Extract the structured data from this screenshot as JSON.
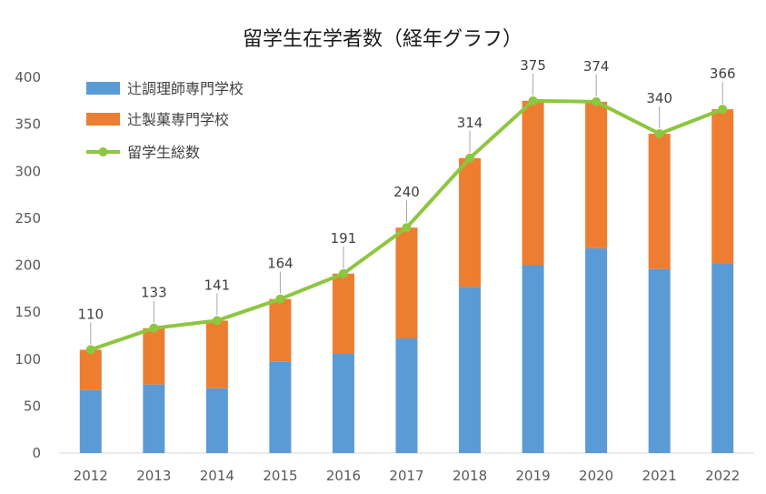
{
  "chart_data": {
    "type": "bar",
    "title": "留学生在学者数（経年グラフ）",
    "xlabel": "",
    "ylabel": "",
    "ylim": [
      0,
      400
    ],
    "yticks": [
      0,
      50,
      100,
      150,
      200,
      250,
      300,
      350,
      400
    ],
    "categories": [
      "2012",
      "2013",
      "2014",
      "2015",
      "2016",
      "2017",
      "2018",
      "2019",
      "2020",
      "2021",
      "2022"
    ],
    "series": [
      {
        "name": "辻調理師専門学校",
        "kind": "stacked-bar",
        "color": "#5b9bd5",
        "values": [
          67,
          73,
          69,
          97,
          106,
          122,
          177,
          200,
          218,
          196,
          202
        ]
      },
      {
        "name": "辻製菓専門学校",
        "kind": "stacked-bar",
        "color": "#ed7d31",
        "values": [
          43,
          60,
          72,
          67,
          85,
          118,
          137,
          175,
          156,
          144,
          164
        ]
      },
      {
        "name": "留学生総数",
        "kind": "line",
        "color": "#8dc63f",
        "values": [
          110,
          133,
          141,
          164,
          191,
          240,
          314,
          375,
          374,
          340,
          366
        ],
        "labels": [
          "110",
          "133",
          "141",
          "164",
          "191",
          "240",
          "314",
          "375",
          "374",
          "340",
          "366"
        ]
      }
    ],
    "legend": "top-left",
    "grid": false
  }
}
